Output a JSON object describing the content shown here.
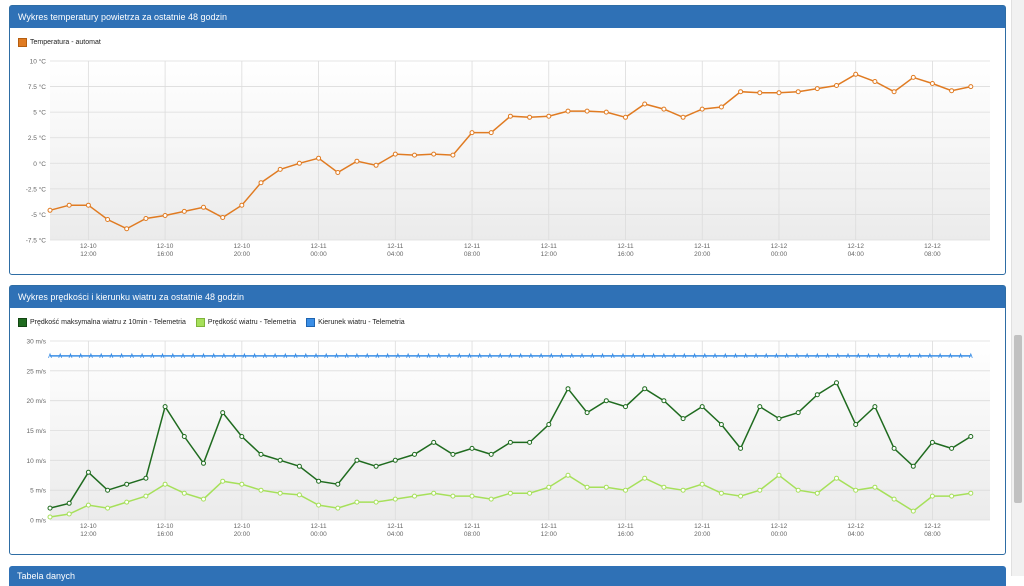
{
  "panels": {
    "temperature": {
      "title": "Wykres temperatury powietrza za ostatnie 48 godzin"
    },
    "wind": {
      "title": "Wykres prędkości i kierunku wiatru za ostatnie 48 godzin"
    },
    "table": {
      "title": "Tabela danych"
    }
  },
  "chart_data": [
    {
      "type": "line",
      "title": "Wykres temperatury powietrza za ostatnie 48 godzin",
      "xlabel": "",
      "ylabel": "",
      "ylim": [
        -7.5,
        10
      ],
      "yticks": [
        "10 °C",
        "7.5 °C",
        "5 °C",
        "2.5 °C",
        "0 °C",
        "-2.5 °C",
        "-5 °C",
        "-7.5 °C"
      ],
      "ytick_values": [
        10,
        7.5,
        5,
        2.5,
        0,
        -2.5,
        -5,
        -7.5
      ],
      "xlim": [
        10,
        59
      ],
      "xticks": [
        {
          "h": 12,
          "label1": "12-10",
          "label2": "12:00"
        },
        {
          "h": 16,
          "label1": "12-10",
          "label2": "16:00"
        },
        {
          "h": 20,
          "label1": "12-10",
          "label2": "20:00"
        },
        {
          "h": 24,
          "label1": "12-11",
          "label2": "00:00"
        },
        {
          "h": 28,
          "label1": "12-11",
          "label2": "04:00"
        },
        {
          "h": 32,
          "label1": "12-11",
          "label2": "08:00"
        },
        {
          "h": 36,
          "label1": "12-11",
          "label2": "12:00"
        },
        {
          "h": 40,
          "label1": "12-11",
          "label2": "16:00"
        },
        {
          "h": 44,
          "label1": "12-11",
          "label2": "20:00"
        },
        {
          "h": 48,
          "label1": "12-12",
          "label2": "00:00"
        },
        {
          "h": 52,
          "label1": "12-12",
          "label2": "04:00"
        },
        {
          "h": 56,
          "label1": "12-12",
          "label2": "08:00"
        }
      ],
      "grid": true,
      "series": [
        {
          "name": "Temperatura - automat",
          "color": "#e07b22",
          "x": [
            10,
            11,
            12,
            13,
            14,
            15,
            16,
            17,
            18,
            19,
            20,
            21,
            22,
            23,
            24,
            25,
            26,
            27,
            28,
            29,
            30,
            31,
            32,
            33,
            34,
            35,
            36,
            37,
            38,
            39,
            40,
            41,
            42,
            43,
            44,
            45,
            46,
            47,
            48,
            49,
            50,
            51,
            52,
            53,
            54,
            55,
            56,
            57,
            58
          ],
          "values": [
            -4.6,
            -4.1,
            -4.1,
            -5.5,
            -6.4,
            -5.4,
            -5.1,
            -4.7,
            -4.3,
            -5.3,
            -4.1,
            -1.9,
            -0.6,
            0.0,
            0.5,
            -0.9,
            0.2,
            -0.2,
            0.9,
            0.8,
            0.9,
            0.8,
            3.0,
            3.0,
            4.6,
            4.5,
            4.6,
            5.1,
            5.1,
            5.0,
            4.5,
            5.8,
            5.3,
            4.5,
            5.3,
            5.5,
            7.0,
            6.9,
            6.9,
            7.0,
            7.3,
            7.6,
            8.7,
            8.0,
            7.0,
            8.4,
            7.8,
            7.1,
            7.5
          ]
        }
      ]
    },
    {
      "type": "line",
      "title": "Wykres prędkości i kierunku wiatru za ostatnie 48 godzin",
      "xlabel": "",
      "ylabel": "",
      "ylim": [
        0,
        30
      ],
      "yticks": [
        "30 m/s",
        "25 m/s",
        "20 m/s",
        "15 m/s",
        "10 m/s",
        "5 m/s",
        "0 m/s"
      ],
      "ytick_values": [
        30,
        25,
        20,
        15,
        10,
        5,
        0
      ],
      "xlim": [
        10,
        59
      ],
      "xticks": [
        {
          "h": 12,
          "label1": "12-10",
          "label2": "12:00"
        },
        {
          "h": 16,
          "label1": "12-10",
          "label2": "16:00"
        },
        {
          "h": 20,
          "label1": "12-10",
          "label2": "20:00"
        },
        {
          "h": 24,
          "label1": "12-11",
          "label2": "00:00"
        },
        {
          "h": 28,
          "label1": "12-11",
          "label2": "04:00"
        },
        {
          "h": 32,
          "label1": "12-11",
          "label2": "08:00"
        },
        {
          "h": 36,
          "label1": "12-11",
          "label2": "12:00"
        },
        {
          "h": 40,
          "label1": "12-11",
          "label2": "16:00"
        },
        {
          "h": 44,
          "label1": "12-11",
          "label2": "20:00"
        },
        {
          "h": 48,
          "label1": "12-12",
          "label2": "00:00"
        },
        {
          "h": 52,
          "label1": "12-12",
          "label2": "04:00"
        },
        {
          "h": 56,
          "label1": "12-12",
          "label2": "08:00"
        }
      ],
      "grid": true,
      "series": [
        {
          "name": "Prędkość maksymalna wiatru z 10min - Telemetria",
          "color": "#1f6b1f",
          "x": [
            10,
            11,
            12,
            13,
            14,
            15,
            16,
            17,
            18,
            19,
            20,
            21,
            22,
            23,
            24,
            25,
            26,
            27,
            28,
            29,
            30,
            31,
            32,
            33,
            34,
            35,
            36,
            37,
            38,
            39,
            40,
            41,
            42,
            43,
            44,
            45,
            46,
            47,
            48,
            49,
            50,
            51,
            52,
            53,
            54,
            55,
            56,
            57,
            58
          ],
          "values": [
            2.0,
            2.8,
            8.0,
            5.0,
            6.0,
            7.0,
            19.0,
            14.0,
            9.5,
            18.0,
            14.0,
            11.0,
            10.0,
            9.0,
            6.5,
            6.0,
            10.0,
            9.0,
            10.0,
            11.0,
            13.0,
            11.0,
            12.0,
            11.0,
            13.0,
            13.0,
            16.0,
            22.0,
            18.0,
            20.0,
            19.0,
            22.0,
            20.0,
            17.0,
            19.0,
            16.0,
            12.0,
            19.0,
            17.0,
            18.0,
            21.0,
            23.0,
            16.0,
            19.0,
            12.0,
            9.0,
            13.0,
            12.0,
            14.0
          ]
        },
        {
          "name": "Prędkość wiatru - Telemetria",
          "color": "#a6e05a",
          "x": [
            10,
            11,
            12,
            13,
            14,
            15,
            16,
            17,
            18,
            19,
            20,
            21,
            22,
            23,
            24,
            25,
            26,
            27,
            28,
            29,
            30,
            31,
            32,
            33,
            34,
            35,
            36,
            37,
            38,
            39,
            40,
            41,
            42,
            43,
            44,
            45,
            46,
            47,
            48,
            49,
            50,
            51,
            52,
            53,
            54,
            55,
            56,
            57,
            58
          ],
          "values": [
            0.5,
            1.0,
            2.5,
            2.0,
            3.0,
            4.0,
            6.0,
            4.5,
            3.5,
            6.5,
            6.0,
            5.0,
            4.5,
            4.2,
            2.5,
            2.0,
            3.0,
            3.0,
            3.5,
            4.0,
            4.5,
            4.0,
            4.0,
            3.5,
            4.5,
            4.5,
            5.5,
            7.5,
            5.5,
            5.5,
            5.0,
            7.0,
            5.5,
            5.0,
            6.0,
            4.5,
            4.0,
            5.0,
            7.5,
            5.0,
            4.5,
            7.0,
            5.0,
            5.5,
            3.5,
            1.5,
            4.0,
            4.0,
            4.5
          ]
        },
        {
          "name": "Kierunek wiatru - Telemetria",
          "color": "#3a8ee6",
          "x": [
            10,
            58
          ],
          "values": [
            27.5,
            27.5
          ]
        }
      ]
    }
  ]
}
